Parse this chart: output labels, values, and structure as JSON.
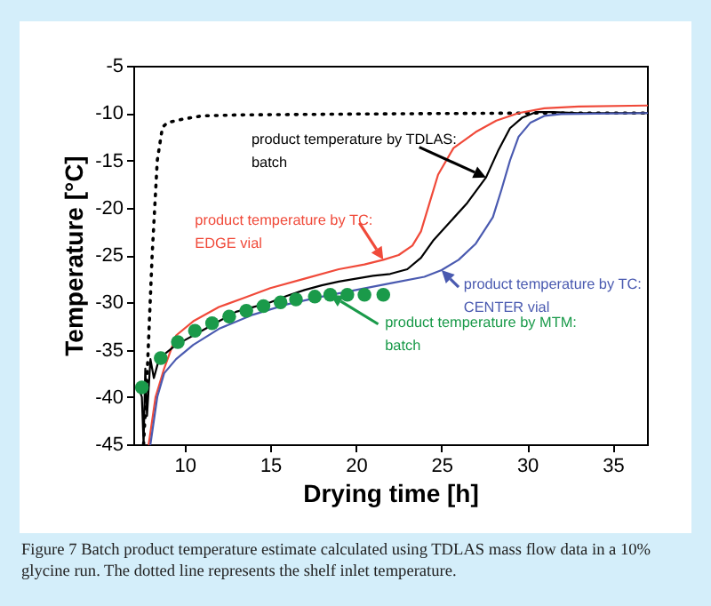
{
  "chart_data": {
    "type": "line",
    "xlabel": "Drying time [h]",
    "ylabel": "Temperature [°C]",
    "xlim": [
      7,
      37
    ],
    "xticks": [
      10,
      15,
      20,
      25,
      30,
      35
    ],
    "ylim": [
      -45,
      -5
    ],
    "yticks": [
      -45,
      -40,
      -35,
      -30,
      -25,
      -20,
      -15,
      -10,
      -5
    ],
    "grid": false,
    "series": [
      {
        "color": "#000000",
        "line_style": "dotted",
        "x": [
          7.6,
          7.8,
          8.1,
          8.4,
          8.7,
          9.0,
          10,
          11,
          13,
          20,
          30,
          37
        ],
        "values": [
          -45,
          -38,
          -25,
          -15,
          -11.5,
          -11,
          -10.6,
          -10.3,
          -10.2,
          -10.1,
          -10,
          -10
        ]
      },
      {
        "name": "product temperature by TC:\nEDGE vial",
        "color": "#f04a3a",
        "x": [
          7.9,
          8.3,
          8.8,
          9.5,
          10.5,
          12,
          13.5,
          15,
          17,
          19,
          20.5,
          21.6,
          22.5,
          23.3,
          23.8,
          24.3,
          24.8,
          25.7,
          27,
          28.2,
          29.5,
          31,
          33,
          37
        ],
        "values": [
          -45,
          -40,
          -37,
          -33.5,
          -32,
          -30.5,
          -29.5,
          -28.5,
          -27.5,
          -26.5,
          -26,
          -25.5,
          -25,
          -24,
          -22.5,
          -19.5,
          -16.5,
          -13.7,
          -12,
          -10.8,
          -10,
          -9.5,
          -9.3,
          -9.2
        ]
      },
      {
        "name": "product temperature by TDLAS:\nbatch",
        "color": "#000000",
        "x": [
          7.3,
          7.5,
          7.6,
          7.7,
          7.8,
          8.0,
          8.2,
          8.5,
          8.8,
          9.5,
          10,
          11,
          12,
          13,
          14,
          15,
          16,
          17,
          18,
          19,
          20,
          21,
          22,
          23,
          23.8,
          24.5,
          25.5,
          26.5,
          27.6,
          28.3,
          29,
          29.7,
          30.5,
          31.5,
          33,
          37
        ],
        "values": [
          -39,
          -40,
          -45,
          -37,
          -42,
          -36,
          -38,
          -36,
          -35.5,
          -34.5,
          -34,
          -33,
          -32,
          -31,
          -30.5,
          -30,
          -29.3,
          -28.7,
          -28.2,
          -27.8,
          -27.5,
          -27.2,
          -27,
          -26.5,
          -25.3,
          -23.5,
          -21.5,
          -19.5,
          -16.8,
          -14,
          -11.6,
          -10.5,
          -9.9,
          -9.9,
          -10,
          -10
        ]
      },
      {
        "name": "product temperature by TC:\nCENTER vial",
        "color": "#4a5ab0",
        "x": [
          8,
          8.4,
          8.8,
          9.5,
          10.5,
          12,
          14,
          16,
          18,
          20,
          22,
          24,
          25,
          26,
          27,
          28,
          28.5,
          29,
          29.5,
          30.2,
          31,
          32,
          37
        ],
        "values": [
          -45,
          -40,
          -37.5,
          -36,
          -34.5,
          -32.8,
          -31.3,
          -30.2,
          -29.4,
          -28.7,
          -28,
          -27.3,
          -26.6,
          -25.5,
          -23.8,
          -21,
          -18.1,
          -15,
          -12.5,
          -11,
          -10.3,
          -10.1,
          -10
        ]
      },
      {
        "name": "product temperature by MTM:\nbatch",
        "type": "scatter",
        "marker": "circle",
        "color": "#1a9a4a",
        "x": [
          7.5,
          8.6,
          9.6,
          10.6,
          11.6,
          12.6,
          13.6,
          14.6,
          15.6,
          16.5,
          17.6,
          18.5,
          19.5,
          20.5,
          21.6
        ],
        "values": [
          -39,
          -35.9,
          -34.2,
          -33,
          -32.2,
          -31.5,
          -30.9,
          -30.4,
          -30,
          -29.7,
          -29.4,
          -29.2,
          -29.2,
          -29.2,
          -29.2
        ]
      }
    ],
    "annotations": [
      "Figure 7 Batch product temperature estimate calculated using TDLAS mass flow data in a 10% glycine run. The dotted line represents the shelf inlet temperature."
    ]
  }
}
